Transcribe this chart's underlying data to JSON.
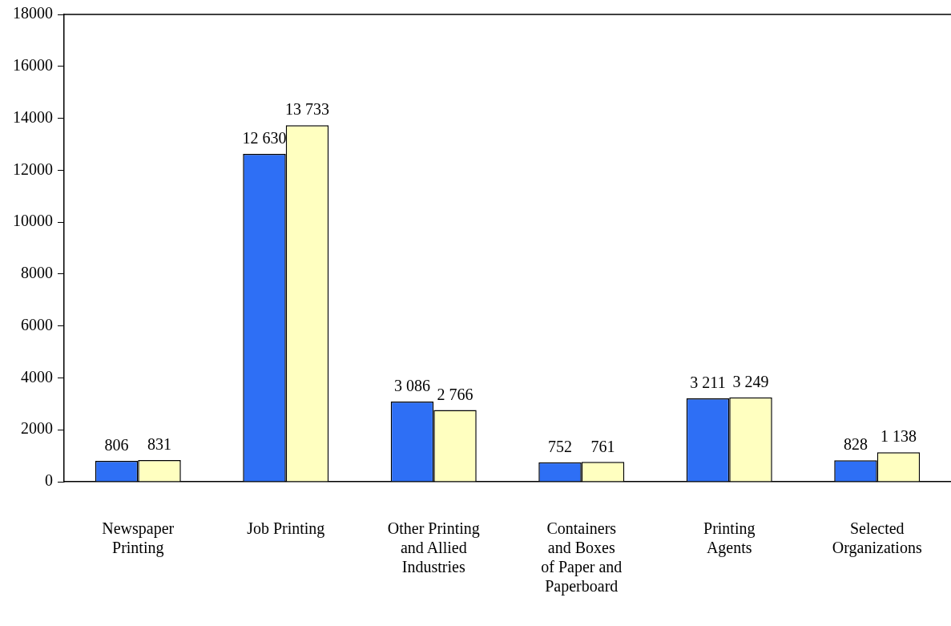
{
  "chart_data": {
    "type": "bar",
    "categories": [
      "Newspaper\nPrinting",
      "Job Printing",
      "Other Printing\nand Allied\nIndustries",
      "Containers\nand Boxes\nof Paper and\nPaperboard",
      "Printing\nAgents",
      "Selected\nOrganizations"
    ],
    "series": [
      {
        "color": "#2e6ff5",
        "values": [
          806,
          12630,
          3086,
          752,
          3211,
          828
        ],
        "value_labels": [
          "806",
          "12 630",
          "3 086",
          "752",
          "3 211",
          "828"
        ]
      },
      {
        "color": "#ffffc0",
        "values": [
          831,
          13733,
          2766,
          761,
          3249,
          1138
        ],
        "value_labels": [
          "831",
          "13 733",
          "2 766",
          "761",
          "3 249",
          "1 138"
        ]
      }
    ],
    "ylim": [
      0,
      18000
    ],
    "yticks": [
      0,
      2000,
      4000,
      6000,
      8000,
      10000,
      12000,
      14000,
      16000,
      18000
    ],
    "grid": false,
    "legend": false
  }
}
